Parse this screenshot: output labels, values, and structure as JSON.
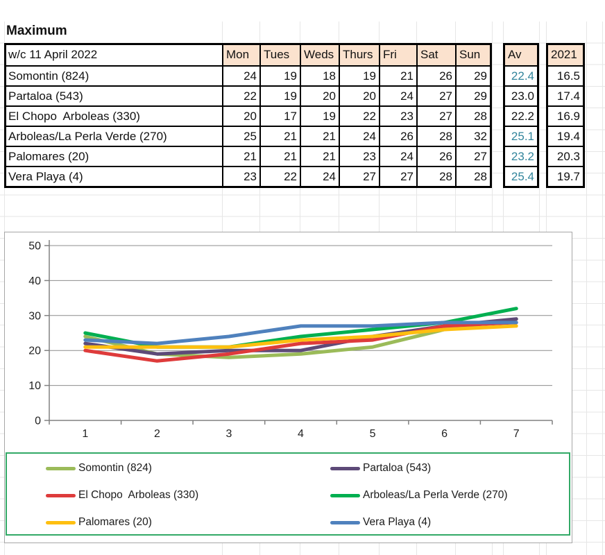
{
  "sheet": {
    "title": "Maximum",
    "table": {
      "week_label": "w/c 11 April 2022",
      "day_headers": [
        "Mon",
        "Tues",
        "Weds",
        "Thurs",
        "Fri",
        "Sat",
        "Sun"
      ],
      "av_header": "Av",
      "prev_year_header": "2021",
      "rows": [
        {
          "name": "Somontin (824)",
          "values": [
            24,
            19,
            18,
            19,
            21,
            26,
            29
          ],
          "av": "22.4",
          "av_teal": true,
          "prev_year": "16.5"
        },
        {
          "name": "Partaloa (543)",
          "values": [
            22,
            19,
            20,
            20,
            24,
            27,
            29
          ],
          "av": "23.0",
          "av_teal": false,
          "prev_year": "17.4"
        },
        {
          "name": "El Chopo  Arboleas (330)",
          "values": [
            20,
            17,
            19,
            22,
            23,
            27,
            28
          ],
          "av": "22.2",
          "av_teal": false,
          "prev_year": "16.9"
        },
        {
          "name": "Arboleas/La Perla Verde (270)",
          "values": [
            25,
            21,
            21,
            24,
            26,
            28,
            32
          ],
          "av": "25.1",
          "av_teal": true,
          "prev_year": "19.4"
        },
        {
          "name": "Palomares (20)",
          "values": [
            21,
            21,
            21,
            23,
            24,
            26,
            27
          ],
          "av": "23.2",
          "av_teal": true,
          "prev_year": "20.3"
        },
        {
          "name": "Vera Playa (4)",
          "values": [
            23,
            22,
            24,
            27,
            27,
            28,
            28
          ],
          "av": "25.4",
          "av_teal": true,
          "prev_year": "19.7"
        }
      ]
    }
  },
  "chart_data": {
    "type": "line",
    "title": "",
    "xlabel": "",
    "ylabel": "",
    "x": [
      1,
      2,
      3,
      4,
      5,
      6,
      7
    ],
    "xtick_labels": [
      "1",
      "2",
      "3",
      "4",
      "5",
      "6",
      "7"
    ],
    "yticks": [
      0,
      10,
      20,
      30,
      40,
      50
    ],
    "ylim": [
      0,
      50
    ],
    "grid": true,
    "legend_position": "bottom",
    "legend_columns": 2,
    "legend_column_order": [
      [
        0,
        2,
        4
      ],
      [
        1,
        3,
        5
      ]
    ],
    "series": [
      {
        "name": "Somontin (824)",
        "color": "#9BBB59",
        "values": [
          24,
          19,
          18,
          19,
          21,
          26,
          29
        ]
      },
      {
        "name": "Partaloa (543)",
        "color": "#5D4A78",
        "values": [
          22,
          19,
          20,
          20,
          24,
          27,
          29
        ]
      },
      {
        "name": "El Chopo  Arboleas (330)",
        "color": "#DE3B3B",
        "values": [
          20,
          17,
          19,
          22,
          23,
          27,
          28
        ]
      },
      {
        "name": "Arboleas/La Perla Verde (270)",
        "color": "#00AF50",
        "values": [
          25,
          21,
          21,
          24,
          26,
          28,
          32
        ]
      },
      {
        "name": "Palomares (20)",
        "color": "#FEBF10",
        "values": [
          21,
          21,
          21,
          23,
          24,
          26,
          27
        ]
      },
      {
        "name": "Vera Playa (4)",
        "color": "#4F81BD",
        "values": [
          23,
          22,
          24,
          27,
          27,
          28,
          28
        ]
      }
    ]
  },
  "colors": {
    "header_fill": "#FBE2CE",
    "teal_text": "#31849B",
    "black_text": "#111111",
    "table_border": "#000000",
    "chart_border": "#A6A6A6",
    "chart_gridline": "#8C8C8C",
    "chart_axis": "#808080",
    "legend_border": "#32A966",
    "bg_gridline": "#E6E6E6"
  }
}
